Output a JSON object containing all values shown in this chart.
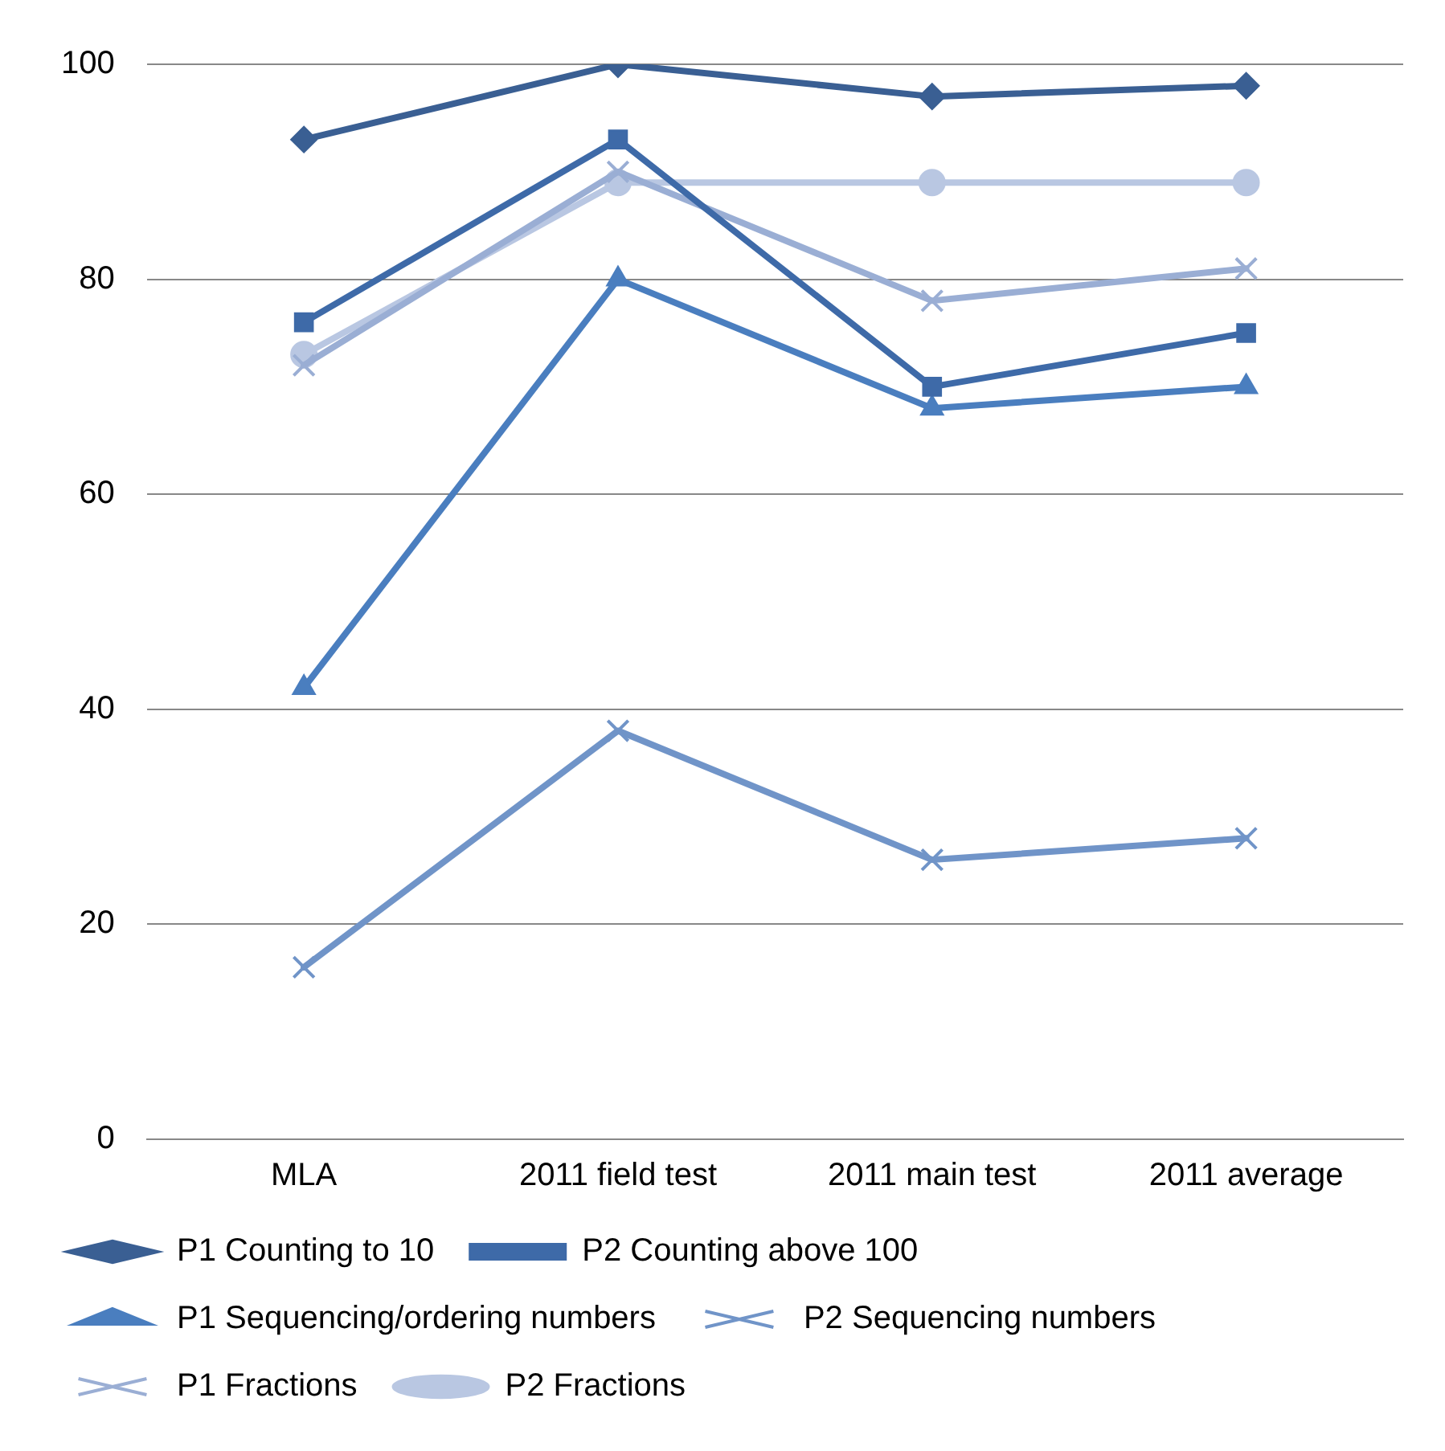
{
  "chart_data": {
    "type": "line",
    "categories": [
      "MLA",
      "2011 field test",
      "2011 main test",
      "2011 average"
    ],
    "series": [
      {
        "name": "P1 Counting to 10",
        "color": "#3a5f93",
        "marker": "diamond",
        "values": [
          93,
          100,
          97,
          98
        ]
      },
      {
        "name": "P2 Counting above 100",
        "color": "#3e6aa8",
        "marker": "square",
        "values": [
          76,
          93,
          70,
          75
        ]
      },
      {
        "name": "P1 Sequencing/ordering numbers",
        "color": "#4a7ebf",
        "marker": "triangle",
        "values": [
          42,
          80,
          68,
          70
        ]
      },
      {
        "name": "P2 Sequencing numbers",
        "color": "#7094c8",
        "marker": "cross",
        "values": [
          16,
          38,
          26,
          28
        ]
      },
      {
        "name": "P1 Fractions",
        "color": "#9aaed4",
        "marker": "cross",
        "values": [
          72,
          90,
          78,
          81
        ]
      },
      {
        "name": "P2 Fractions",
        "color": "#b9c7e2",
        "marker": "circle",
        "values": [
          73,
          89,
          89,
          89
        ]
      }
    ],
    "ylim": [
      0,
      100
    ],
    "yticks": [
      0,
      20,
      40,
      60,
      80,
      100
    ],
    "grid": "y",
    "legend": "bottom",
    "line_style": "solid"
  }
}
